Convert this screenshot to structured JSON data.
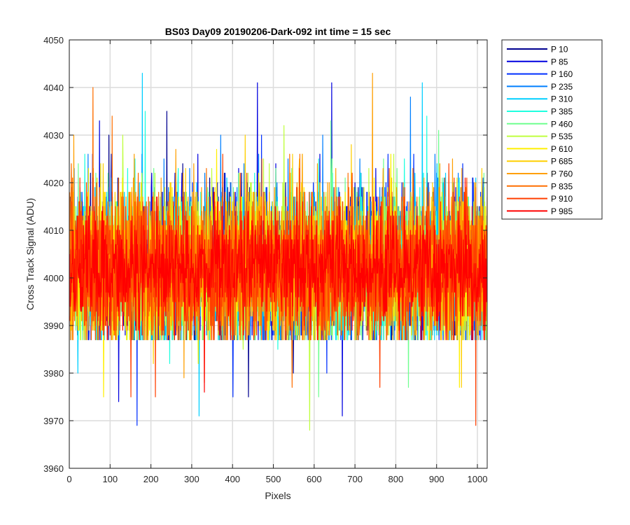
{
  "chart_data": {
    "type": "line",
    "title": "BS03 Day09 20190206-Dark-092 int time = 15 sec",
    "xlabel": "Pixels",
    "ylabel": "Cross Track Signal (ADU)",
    "xlim": [
      0,
      1024
    ],
    "ylim": [
      3960,
      4050
    ],
    "xticks": [
      0,
      100,
      200,
      300,
      400,
      500,
      600,
      700,
      800,
      900,
      1000
    ],
    "yticks": [
      3960,
      3970,
      3980,
      3990,
      4000,
      4010,
      4020,
      4030,
      4040,
      4050
    ],
    "grid": true,
    "legend_position": "outside-top-right",
    "series": [
      {
        "name": "P 10",
        "color": "#00008F",
        "mean": 4002,
        "noise": 8,
        "spikes": [
          [
            96,
            4030
          ],
          [
            238,
            4035
          ],
          [
            438,
            3975
          ],
          [
            548,
            3980
          ]
        ]
      },
      {
        "name": "P 85",
        "color": "#0000DF",
        "mean": 4002,
        "noise": 8,
        "spikes": [
          [
            73,
            4033
          ],
          [
            120,
            3974
          ],
          [
            460,
            4041
          ],
          [
            642,
            4041
          ],
          [
            668,
            3971
          ],
          [
            745,
            3988
          ]
        ]
      },
      {
        "name": "P 160",
        "color": "#002FFF",
        "mean": 4002,
        "noise": 8,
        "spikes": [
          [
            165,
            3969
          ],
          [
            400,
            3975
          ],
          [
            470,
            4030
          ],
          [
            630,
            3980
          ]
        ]
      },
      {
        "name": "P 235",
        "color": "#007FFF",
        "mean": 4002,
        "noise": 8,
        "spikes": [
          [
            45,
            4026
          ],
          [
            370,
            4030
          ],
          [
            620,
            4030
          ],
          [
            835,
            4038
          ]
        ]
      },
      {
        "name": "P 310",
        "color": "#00CFFF",
        "mean": 4002,
        "noise": 8,
        "spikes": [
          [
            20,
            3980
          ],
          [
            178,
            4043
          ],
          [
            317,
            3971
          ],
          [
            864,
            4041
          ]
        ]
      },
      {
        "name": "P 385",
        "color": "#1FFFDF",
        "mean": 4002,
        "noise": 8,
        "spikes": [
          [
            185,
            4035
          ],
          [
            245,
            3982
          ],
          [
            510,
            3985
          ],
          [
            875,
            4034
          ]
        ]
      },
      {
        "name": "P 460",
        "color": "#6FFF8F",
        "mean": 4002,
        "noise": 8,
        "spikes": [
          [
            610,
            3975
          ],
          [
            830,
            3977
          ],
          [
            904,
            4031
          ],
          [
            640,
            4033
          ]
        ]
      },
      {
        "name": "P 535",
        "color": "#BFFF3F",
        "mean": 4002,
        "noise": 8,
        "spikes": [
          [
            130,
            4030
          ],
          [
            425,
            3985
          ],
          [
            588,
            3968
          ],
          [
            525,
            4032
          ]
        ]
      },
      {
        "name": "P 610",
        "color": "#FFEF00",
        "mean": 4002,
        "noise": 8,
        "spikes": [
          [
            83,
            3975
          ],
          [
            315,
            3982
          ],
          [
            955,
            3977
          ],
          [
            360,
            4027
          ]
        ]
      },
      {
        "name": "P 685",
        "color": "#FFCF00",
        "mean": 4002,
        "noise": 8,
        "spikes": [
          [
            205,
            3982
          ],
          [
            430,
            4030
          ],
          [
            960,
            3977
          ],
          [
            690,
            4028
          ]
        ]
      },
      {
        "name": "P 760",
        "color": "#FF9F00",
        "mean": 4002,
        "noise": 8,
        "spikes": [
          [
            10,
            4030
          ],
          [
            280,
            3979
          ],
          [
            742,
            4043
          ],
          [
            260,
            4027
          ]
        ]
      },
      {
        "name": "P 835",
        "color": "#FF6F00",
        "mean": 4002,
        "noise": 8,
        "spikes": [
          [
            57,
            4040
          ],
          [
            104,
            4034
          ],
          [
            545,
            3977
          ],
          [
            330,
            3978
          ]
        ]
      },
      {
        "name": "P 910",
        "color": "#FF3F00",
        "mean": 4002,
        "noise": 8,
        "spikes": [
          [
            150,
            3975
          ],
          [
            210,
            3975
          ],
          [
            995,
            3969
          ],
          [
            760,
            3977
          ]
        ]
      },
      {
        "name": "P 985",
        "color": "#FF0000",
        "mean": 4002,
        "noise": 6,
        "spikes": [
          [
            330,
            3976
          ],
          [
            575,
            3990
          ]
        ]
      }
    ]
  }
}
